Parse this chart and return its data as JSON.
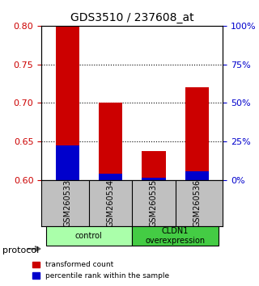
{
  "title": "GDS3510 / 237608_at",
  "categories": [
    "GSM260533",
    "GSM260534",
    "GSM260535",
    "GSM260536"
  ],
  "red_values": [
    0.8,
    0.7,
    0.638,
    0.72
  ],
  "blue_values": [
    0.645,
    0.608,
    0.603,
    0.612
  ],
  "ylim": [
    0.6,
    0.8
  ],
  "yticks_left": [
    0.6,
    0.65,
    0.7,
    0.75,
    0.8
  ],
  "yticks_right": [
    0,
    25,
    50,
    75,
    100
  ],
  "red_color": "#cc0000",
  "blue_color": "#0000cc",
  "group_labels": [
    "control",
    "CLDN1\noverexpression"
  ],
  "group_colors": [
    "#aaffaa",
    "#44cc44"
  ],
  "protocol_label": "protocol",
  "legend_red": "transformed count",
  "legend_blue": "percentile rank within the sample",
  "tick_color_left": "#cc0000",
  "tick_color_right": "#0000cc",
  "background_color": "#ffffff",
  "xticklabel_bg": "#c0c0c0"
}
